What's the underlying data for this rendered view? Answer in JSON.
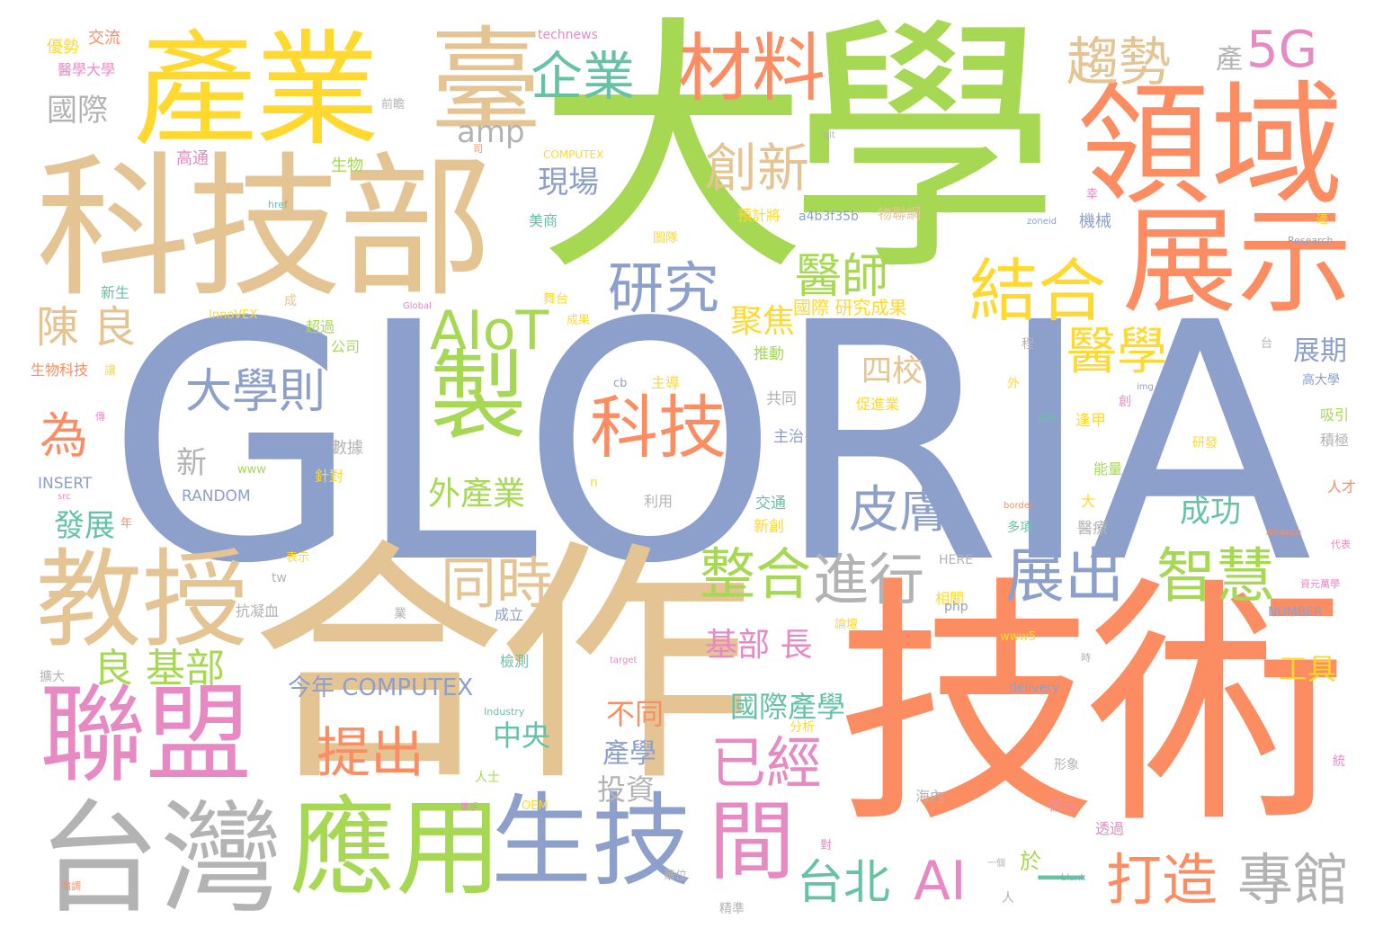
{
  "colors": {
    "green": "#a6d854",
    "blue": "#8da0cb",
    "tan": "#e5c494",
    "orange": "#fc8d62",
    "pink": "#e78ac3",
    "yellow": "#ffd92f",
    "teal": "#66c2a5",
    "gray": "#b3b3b3"
  },
  "words": [
    {
      "text": "GLORIA",
      "color": "blue"
    },
    {
      "text": "大學",
      "color": "green"
    },
    {
      "text": "合作",
      "color": "tan"
    },
    {
      "text": "技術",
      "color": "orange"
    },
    {
      "text": "科技部",
      "color": "tan"
    },
    {
      "text": "產業",
      "color": "yellow"
    },
    {
      "text": "臺",
      "color": "tan"
    },
    {
      "text": "領域",
      "color": "orange"
    },
    {
      "text": "展示",
      "color": "orange"
    },
    {
      "text": "教授",
      "color": "tan"
    },
    {
      "text": "聯盟",
      "color": "pink"
    },
    {
      "text": "台灣",
      "color": "gray"
    },
    {
      "text": "應用",
      "color": "green"
    },
    {
      "text": "生技",
      "color": "blue"
    },
    {
      "text": "製",
      "color": "green"
    },
    {
      "text": "間",
      "color": "pink"
    },
    {
      "text": "科技",
      "color": "orange"
    },
    {
      "text": "材料",
      "color": "orange"
    },
    {
      "text": "結合",
      "color": "yellow"
    },
    {
      "text": "AIoT",
      "color": "green"
    },
    {
      "text": "研究",
      "color": "blue"
    },
    {
      "text": "趨勢",
      "color": "tan"
    },
    {
      "text": "5G",
      "color": "pink"
    },
    {
      "text": "企業",
      "color": "teal"
    },
    {
      "text": "創新",
      "color": "tan"
    },
    {
      "text": "醫師",
      "color": "green"
    },
    {
      "text": "醫學",
      "color": "yellow"
    },
    {
      "text": "大學則",
      "color": "blue"
    },
    {
      "text": "皮膚",
      "color": "blue"
    },
    {
      "text": "整合",
      "color": "green"
    },
    {
      "text": "進行",
      "color": "gray"
    },
    {
      "text": "展出",
      "color": "blue"
    },
    {
      "text": "智慧",
      "color": "green"
    },
    {
      "text": "同時",
      "color": "tan"
    },
    {
      "text": "已經",
      "color": "pink"
    },
    {
      "text": "提出",
      "color": "orange"
    },
    {
      "text": "專館",
      "color": "gray"
    },
    {
      "text": "打造",
      "color": "orange"
    },
    {
      "text": "台北",
      "color": "teal"
    },
    {
      "text": "AI",
      "color": "pink"
    },
    {
      "text": "國際",
      "color": "gray"
    },
    {
      "text": "陳 良",
      "color": "tan"
    },
    {
      "text": "為",
      "color": "orange"
    },
    {
      "text": "良 基部",
      "color": "green"
    },
    {
      "text": "四校",
      "color": "tan"
    },
    {
      "text": "現場",
      "color": "blue"
    },
    {
      "text": "聚焦",
      "color": "yellow"
    },
    {
      "text": "基部 長",
      "color": "pink"
    },
    {
      "text": "外產業",
      "color": "green"
    },
    {
      "text": "國際產學",
      "color": "teal"
    },
    {
      "text": "成功",
      "color": "teal"
    },
    {
      "text": "展期",
      "color": "blue"
    },
    {
      "text": "工具",
      "color": "yellow"
    },
    {
      "text": "發展",
      "color": "teal"
    },
    {
      "text": "新",
      "color": "gray"
    },
    {
      "text": "中央",
      "color": "teal"
    },
    {
      "text": "不同",
      "color": "orange"
    },
    {
      "text": "產學",
      "color": "blue"
    },
    {
      "text": "投資",
      "color": "gray"
    },
    {
      "text": "今年 COMPUTEX",
      "color": "blue"
    },
    {
      "text": "amp",
      "color": "gray"
    },
    {
      "text": "產",
      "color": "gray"
    },
    {
      "text": "國際 研究成果",
      "color": "yellow"
    },
    {
      "text": "a4b3f35b",
      "color": "blue"
    },
    {
      "text": "technews",
      "color": "pink"
    },
    {
      "text": "INSERT",
      "color": "blue"
    },
    {
      "text": "RANDOM",
      "color": "blue"
    },
    {
      "text": "生物科技",
      "color": "orange"
    },
    {
      "text": "優勢",
      "color": "yellow"
    },
    {
      "text": "交流",
      "color": "orange"
    },
    {
      "text": "醫學大學",
      "color": "pink"
    },
    {
      "text": "高通",
      "color": "pink"
    },
    {
      "text": "生物",
      "color": "green"
    },
    {
      "text": "美商",
      "color": "teal"
    },
    {
      "text": "COMPUTEX",
      "color": "yellow"
    },
    {
      "text": "InnoVEX",
      "color": "yellow"
    },
    {
      "text": "公司",
      "color": "green"
    },
    {
      "text": "超過",
      "color": "green"
    },
    {
      "text": "新生",
      "color": "teal"
    },
    {
      "text": "預計將",
      "color": "yellow"
    },
    {
      "text": "物聯網",
      "color": "tan"
    },
    {
      "text": "機械",
      "color": "blue"
    },
    {
      "text": "推動",
      "color": "green"
    },
    {
      "text": "共同",
      "color": "gray"
    },
    {
      "text": "主治",
      "color": "blue"
    },
    {
      "text": "數據",
      "color": "gray"
    },
    {
      "text": "交通",
      "color": "teal"
    },
    {
      "text": "新創",
      "color": "yellow"
    },
    {
      "text": "促進業",
      "color": "yellow"
    },
    {
      "text": "主導",
      "color": "yellow"
    },
    {
      "text": "逢甲",
      "color": "yellow"
    },
    {
      "text": "積極",
      "color": "gray"
    },
    {
      "text": "吸引",
      "color": "green"
    },
    {
      "text": "研發",
      "color": "yellow"
    },
    {
      "text": "能量",
      "color": "green"
    },
    {
      "text": "人才",
      "color": "orange"
    },
    {
      "text": "醫療",
      "color": "gray"
    },
    {
      "text": "多項",
      "color": "teal"
    },
    {
      "text": "相關",
      "color": "yellow"
    },
    {
      "text": "php",
      "color": "blue"
    },
    {
      "text": "HERE",
      "color": "gray"
    },
    {
      "text": "NUMBER",
      "color": "blue"
    },
    {
      "text": "www5",
      "color": "yellow"
    },
    {
      "text": "delivery",
      "color": "blue"
    },
    {
      "text": "Industry",
      "color": "teal"
    },
    {
      "text": "target",
      "color": "pink"
    },
    {
      "text": "Research",
      "color": "blue"
    },
    {
      "text": "Alliance",
      "color": "orange"
    },
    {
      "text": "Global",
      "color": "pink"
    },
    {
      "text": "zoneid",
      "color": "blue"
    },
    {
      "text": "blank",
      "color": "blue"
    },
    {
      "text": "border",
      "color": "orange"
    },
    {
      "text": "href",
      "color": "teal"
    },
    {
      "text": "src",
      "color": "pink"
    },
    {
      "text": "www",
      "color": "green"
    },
    {
      "text": "tw",
      "color": "gray"
    },
    {
      "text": "cb",
      "color": "blue"
    },
    {
      "text": "img",
      "color": "blue"
    },
    {
      "text": "alt",
      "color": "gray"
    },
    {
      "text": "OEM",
      "color": "yellow"
    },
    {
      "text": "人士",
      "color": "green"
    },
    {
      "text": "億元",
      "color": "pink"
    },
    {
      "text": "形象",
      "color": "gray"
    },
    {
      "text": "透過",
      "color": "pink"
    },
    {
      "text": "海內",
      "color": "gray"
    },
    {
      "text": "精準",
      "color": "gray"
    },
    {
      "text": "華位",
      "color": "gray"
    },
    {
      "text": "檢測",
      "color": "teal"
    },
    {
      "text": "成立",
      "color": "blue"
    },
    {
      "text": "論壇",
      "color": "yellow"
    },
    {
      "text": "抗凝血",
      "color": "gray"
    },
    {
      "text": "擴大",
      "color": "gray"
    },
    {
      "text": "利用",
      "color": "gray"
    },
    {
      "text": "針對",
      "color": "yellow"
    },
    {
      "text": "年",
      "color": "orange"
    },
    {
      "text": "表示",
      "color": "yellow"
    },
    {
      "text": "前瞻",
      "color": "gray"
    },
    {
      "text": "舞台",
      "color": "yellow"
    },
    {
      "text": "成果",
      "color": "yellow"
    },
    {
      "text": "成",
      "color": "tan"
    },
    {
      "text": "圖隊",
      "color": "yellow"
    },
    {
      "text": "高大學",
      "color": "blue"
    },
    {
      "text": "代表",
      "color": "pink"
    },
    {
      "text": "資元萬學",
      "color": "pink"
    },
    {
      "text": "國內",
      "color": "teal"
    },
    {
      "text": "分析",
      "color": "yellow"
    },
    {
      "text": "攜手",
      "color": "pink"
    },
    {
      "text": "強調",
      "color": "orange"
    },
    {
      "text": "一個",
      "color": "gray"
    },
    {
      "text": "人",
      "color": "gray"
    },
    {
      "text": "業",
      "color": "gray"
    },
    {
      "text": "於",
      "color": "green"
    },
    {
      "text": "一",
      "color": "teal"
    },
    {
      "text": "大",
      "color": "yellow"
    },
    {
      "text": "外",
      "color": "yellow"
    },
    {
      "text": "程",
      "color": "gray"
    },
    {
      "text": "台",
      "color": "gray"
    },
    {
      "text": "創",
      "color": "pink"
    },
    {
      "text": "統",
      "color": "pink"
    },
    {
      "text": "傳",
      "color": "pink"
    },
    {
      "text": "讓",
      "color": "yellow"
    },
    {
      "text": "適",
      "color": "yellow"
    },
    {
      "text": "幸",
      "color": "pink"
    },
    {
      "text": "時",
      "color": "gray"
    },
    {
      "text": "對",
      "color": "pink"
    },
    {
      "text": "司",
      "color": "orange"
    },
    {
      "text": "n",
      "color": "yellow"
    }
  ]
}
